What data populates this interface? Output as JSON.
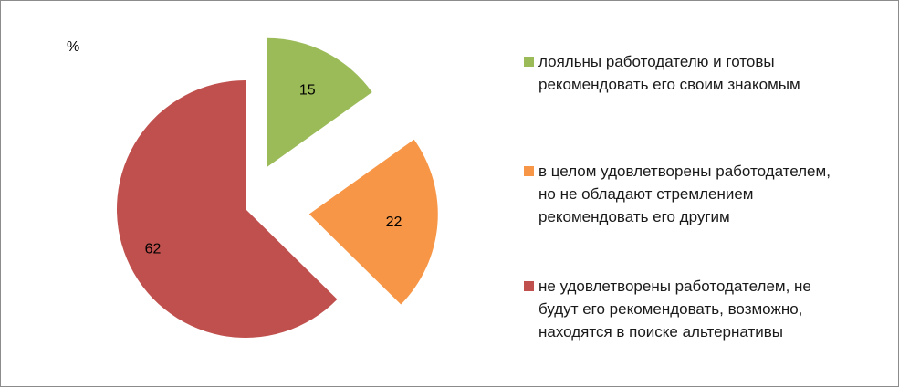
{
  "chart_data": {
    "type": "pie",
    "unit_label": "%",
    "slices": [
      {
        "label": "лояльны работодателю и готовы рекомендовать его своим знакомым",
        "label_lines": [
          "лояльны работодателю и готовы",
          "рекомендовать его своим знакомым"
        ],
        "value": 15,
        "color": "#9bbb59"
      },
      {
        "label": "в целом удовлетворены работодателем, но не обладают стремлением рекомендовать его другим",
        "label_lines": [
          "в целом удовлетворены работодателем,",
          "но не обладают стремлением",
          "рекомендовать его другим"
        ],
        "value": 22,
        "color": "#f79646"
      },
      {
        "label": "не удовлетворены работодателем, не будут его рекомендовать, возможно, находятся в поиске альтернативы",
        "label_lines": [
          "не удовлетворены работодателем, не",
          "будут его рекомендовать, возможно,",
          "находятся в поиске альтернативы"
        ],
        "value": 62,
        "color": "#c0504d"
      }
    ],
    "legend_position": "right",
    "exploded": true
  }
}
